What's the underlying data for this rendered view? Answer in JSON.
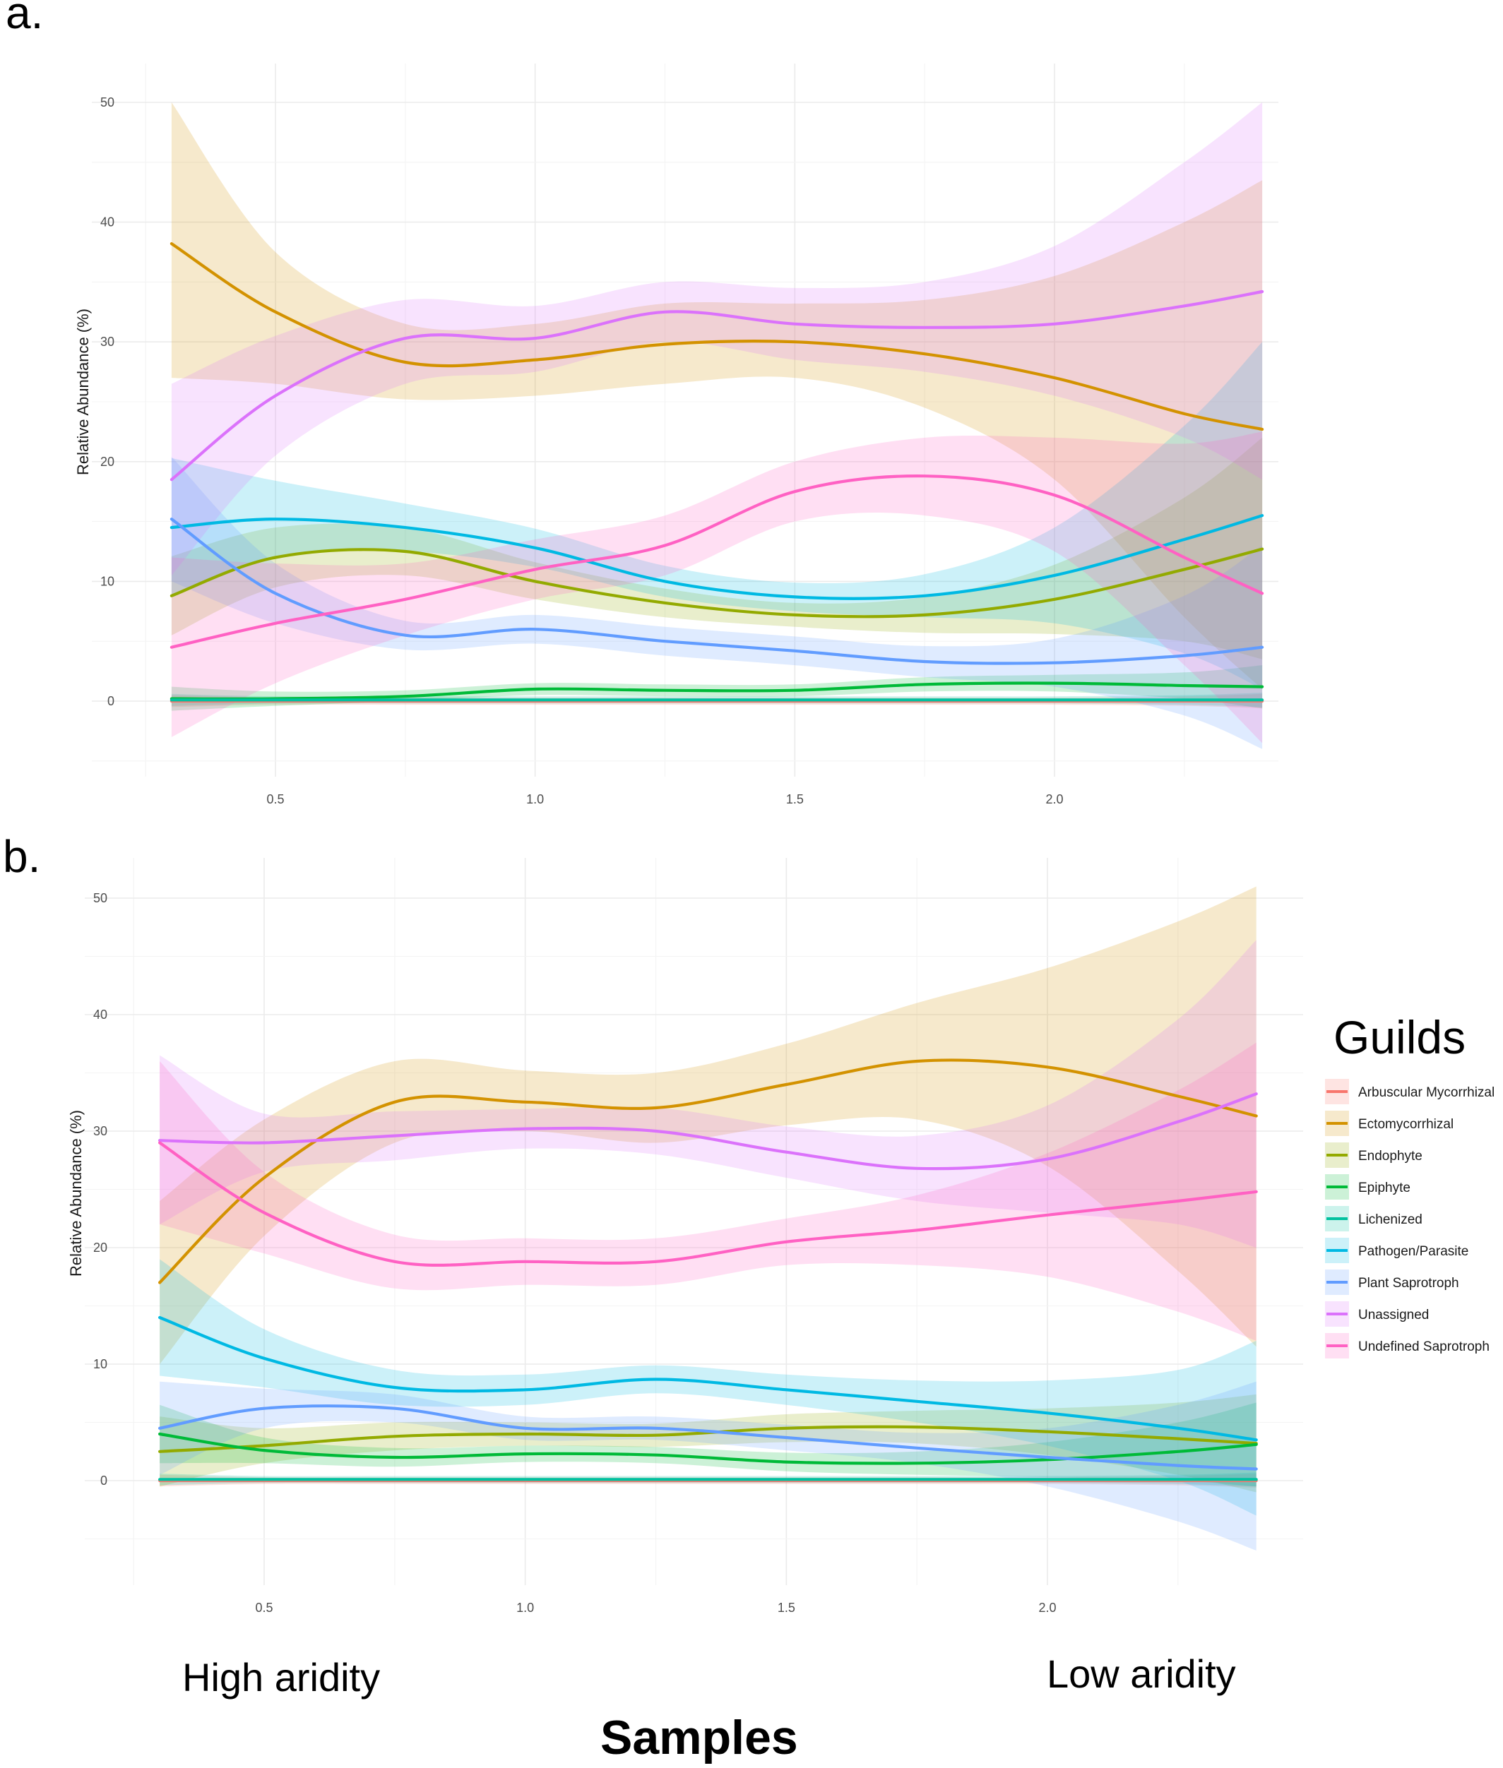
{
  "annotations": {
    "high_aridity": "High aridity",
    "low_aridity": "Low aridity",
    "samples": "Samples"
  },
  "legend": {
    "title": "Guilds",
    "items": [
      {
        "label": "Arbuscular Mycorrhizal",
        "color": "#F8766D"
      },
      {
        "label": "Ectomycorrhizal",
        "color": "#D39200"
      },
      {
        "label": "Endophyte",
        "color": "#93AA00"
      },
      {
        "label": "Epiphyte",
        "color": "#00BA38"
      },
      {
        "label": "Lichenized",
        "color": "#00C19F"
      },
      {
        "label": "Pathogen/Parasite",
        "color": "#00B9E3"
      },
      {
        "label": "Plant Saprotroph",
        "color": "#619CFF"
      },
      {
        "label": "Unassigned",
        "color": "#DB72FB"
      },
      {
        "label": "Undefined Saprotroph",
        "color": "#FF61C3"
      }
    ]
  },
  "chart_data": [
    {
      "type": "line",
      "panel": "a.",
      "ylabel": "Relative Abundance (%)",
      "xlim": [
        0.2,
        2.45
      ],
      "ylim": [
        -5,
        52
      ],
      "x_ticks": [
        "0.5",
        "1.0",
        "1.5",
        "2.0"
      ],
      "y_ticks": [
        "0",
        "10",
        "20",
        "30",
        "40",
        "50"
      ],
      "grid": true,
      "x": [
        0.3,
        0.5,
        0.75,
        1.0,
        1.25,
        1.5,
        1.75,
        2.0,
        2.25,
        2.4
      ],
      "series": [
        {
          "name": "Arbuscular Mycorrhizal",
          "values": [
            0,
            0,
            0,
            0,
            0,
            0,
            0,
            0,
            0,
            0
          ],
          "lower": [
            -0.5,
            -0.3,
            -0.3,
            -0.3,
            -0.3,
            -0.3,
            -0.3,
            -0.3,
            -0.4,
            -0.6
          ],
          "upper": [
            0.5,
            0.3,
            0.3,
            0.3,
            0.3,
            0.3,
            0.3,
            0.3,
            0.4,
            0.6
          ]
        },
        {
          "name": "Ectomycorrhizal",
          "values": [
            38.2,
            32.5,
            28.3,
            28.5,
            29.8,
            30,
            29,
            27,
            24,
            22.7
          ],
          "lower": [
            27,
            26.5,
            25.2,
            25.5,
            26.5,
            27,
            24.5,
            18.5,
            7,
            1
          ],
          "upper": [
            50,
            37.5,
            31.5,
            31.5,
            33.2,
            33.2,
            33.5,
            35.5,
            40,
            43.5
          ]
        },
        {
          "name": "Endophyte",
          "values": [
            8.8,
            12,
            12.5,
            10,
            8.2,
            7.2,
            7.2,
            8.5,
            11,
            12.7
          ],
          "lower": [
            5.5,
            9.5,
            10.5,
            8.5,
            7,
            6.2,
            5.7,
            5.6,
            5,
            3.5
          ],
          "upper": [
            12.1,
            14.5,
            14.5,
            11.6,
            9.4,
            8.2,
            8.7,
            11.4,
            17,
            22
          ]
        },
        {
          "name": "Epiphyte",
          "values": [
            0.2,
            0.2,
            0.4,
            1,
            0.9,
            0.9,
            1.4,
            1.5,
            1.3,
            1.2
          ],
          "lower": [
            -0.8,
            -0.4,
            0,
            0.5,
            0.4,
            0.4,
            0.8,
            0.8,
            0.2,
            -0.6
          ],
          "upper": [
            1.2,
            0.8,
            0.9,
            1.5,
            1.4,
            1.4,
            2,
            2.2,
            2.4,
            3
          ]
        },
        {
          "name": "Lichenized",
          "values": [
            0.1,
            0.1,
            0.1,
            0.1,
            0.1,
            0.1,
            0.1,
            0.1,
            0.1,
            0.1
          ],
          "lower": [
            -0.4,
            -0.2,
            -0.2,
            -0.2,
            -0.2,
            -0.2,
            -0.2,
            -0.2,
            -0.3,
            -0.5
          ],
          "upper": [
            0.6,
            0.4,
            0.4,
            0.4,
            0.4,
            0.4,
            0.4,
            0.4,
            0.5,
            0.7
          ]
        },
        {
          "name": "Pathogen/Parasite",
          "values": [
            14.5,
            15.2,
            14.5,
            12.8,
            10,
            8.7,
            8.8,
            10.5,
            13.5,
            15.5
          ],
          "lower": [
            8.7,
            12,
            12.5,
            11.2,
            8.7,
            7.5,
            7,
            6.5,
            4,
            1
          ],
          "upper": [
            20.3,
            18.4,
            16.5,
            14.4,
            11.3,
            9.9,
            10.6,
            14.5,
            23,
            30
          ]
        },
        {
          "name": "Plant Saprotroph",
          "values": [
            15.2,
            9,
            5.5,
            6,
            5,
            4.2,
            3.3,
            3.2,
            3.8,
            4.5
          ],
          "lower": [
            10,
            6.5,
            4.3,
            4.8,
            3.8,
            3,
            2,
            1.2,
            -1.2,
            -4
          ],
          "upper": [
            20.4,
            11.5,
            6.7,
            7.2,
            6.2,
            5.4,
            4.6,
            5.2,
            8.8,
            13
          ]
        },
        {
          "name": "Unassigned",
          "values": [
            18.5,
            25.5,
            30.3,
            30.3,
            32.5,
            31.5,
            31.2,
            31.5,
            33,
            34.2
          ],
          "lower": [
            10.5,
            20.5,
            26.5,
            27.5,
            30,
            28.5,
            27.5,
            25.5,
            22,
            18.5
          ],
          "upper": [
            26.5,
            30.5,
            33.5,
            33,
            35,
            34.5,
            35,
            38,
            45,
            50
          ]
        },
        {
          "name": "Undefined Saprotroph",
          "values": [
            4.5,
            6.5,
            8.5,
            11,
            13,
            17.5,
            18.8,
            17.2,
            12,
            9
          ],
          "lower": [
            -3,
            1.5,
            5.5,
            8.5,
            10.5,
            15,
            15.5,
            12.5,
            3,
            -3.5
          ],
          "upper": [
            12,
            11.5,
            11.5,
            13.5,
            15.5,
            20,
            22,
            22,
            21.5,
            22.5
          ]
        }
      ]
    },
    {
      "type": "line",
      "panel": "b.",
      "ylabel": "Relative Abundance (%)",
      "xlim": [
        0.2,
        2.45
      ],
      "ylim": [
        -9,
        54
      ],
      "x_ticks": [
        "0.5",
        "1.0",
        "1.5",
        "2.0"
      ],
      "y_ticks": [
        "0",
        "10",
        "20",
        "30",
        "40",
        "50"
      ],
      "grid": true,
      "x": [
        0.3,
        0.5,
        0.75,
        1.0,
        1.25,
        1.5,
        1.75,
        2.0,
        2.25,
        2.4
      ],
      "series": [
        {
          "name": "Arbuscular Mycorrhizal",
          "values": [
            0,
            0,
            0,
            0,
            0,
            0,
            0,
            0,
            0,
            0
          ],
          "lower": [
            -0.5,
            -0.3,
            -0.3,
            -0.3,
            -0.3,
            -0.3,
            -0.3,
            -0.3,
            -0.4,
            -0.6
          ],
          "upper": [
            0.5,
            0.3,
            0.3,
            0.3,
            0.3,
            0.3,
            0.3,
            0.3,
            0.4,
            0.6
          ]
        },
        {
          "name": "Ectomycorrhizal",
          "values": [
            17,
            26,
            32.5,
            32.5,
            32,
            34,
            36,
            35.5,
            33,
            31.3
          ],
          "lower": [
            10,
            21,
            29,
            30,
            29,
            30.5,
            31,
            27,
            18,
            11.5
          ],
          "upper": [
            24,
            31,
            36,
            35.2,
            35,
            37.5,
            41,
            44,
            48,
            51
          ]
        },
        {
          "name": "Endophyte",
          "values": [
            2.5,
            3,
            3.8,
            4,
            3.9,
            4.5,
            4.6,
            4.2,
            3.6,
            3.2
          ],
          "lower": [
            -0.5,
            1.5,
            2.6,
            3,
            2.9,
            3.3,
            3.2,
            2.2,
            0.5,
            -1
          ],
          "upper": [
            5.5,
            4.5,
            5,
            5,
            4.9,
            5.7,
            6,
            6.2,
            6.7,
            7.4
          ]
        },
        {
          "name": "Epiphyte",
          "values": [
            4,
            2.6,
            2,
            2.3,
            2.2,
            1.6,
            1.5,
            1.8,
            2.5,
            3.1
          ],
          "lower": [
            1.5,
            1.5,
            1.2,
            1.6,
            1.5,
            0.8,
            0.5,
            0.3,
            0,
            -0.5
          ],
          "upper": [
            6.5,
            3.7,
            2.8,
            3,
            2.9,
            2.4,
            2.5,
            3.3,
            5,
            6.7
          ]
        },
        {
          "name": "Lichenized",
          "values": [
            0.1,
            0.1,
            0.1,
            0.1,
            0.1,
            0.1,
            0.1,
            0.1,
            0.1,
            0.1
          ],
          "lower": [
            -0.4,
            -0.2,
            -0.2,
            -0.2,
            -0.2,
            -0.2,
            -0.2,
            -0.2,
            -0.3,
            -0.5
          ],
          "upper": [
            0.6,
            0.4,
            0.4,
            0.4,
            0.4,
            0.4,
            0.4,
            0.4,
            0.5,
            0.7
          ]
        },
        {
          "name": "Pathogen/Parasite",
          "values": [
            14,
            10.5,
            8,
            7.8,
            8.7,
            7.8,
            6.8,
            5.8,
            4.5,
            3.5
          ],
          "lower": [
            9,
            8,
            6.5,
            6.5,
            7.5,
            6.5,
            5,
            3,
            0,
            -3
          ],
          "upper": [
            19,
            13,
            9.5,
            9.1,
            9.9,
            9.1,
            8.6,
            8.6,
            9.5,
            12
          ]
        },
        {
          "name": "Plant Saprotroph",
          "values": [
            4.5,
            6.2,
            6.2,
            4.5,
            4.5,
            3.7,
            2.8,
            2,
            1.3,
            1
          ],
          "lower": [
            0.5,
            4.5,
            5,
            3.5,
            3.5,
            2.6,
            1.5,
            -0.5,
            -3.5,
            -6
          ],
          "upper": [
            8.5,
            7.9,
            7.4,
            5.5,
            5.5,
            4.8,
            4.1,
            4.5,
            6.5,
            8.5
          ]
        },
        {
          "name": "Unassigned",
          "values": [
            29.2,
            29,
            29.6,
            30.2,
            30,
            28.2,
            26.8,
            27.6,
            30.8,
            33.2
          ],
          "lower": [
            22,
            26.5,
            27.5,
            28.5,
            28,
            26,
            24,
            23,
            22,
            20
          ],
          "upper": [
            36.5,
            31.5,
            31.7,
            31.9,
            32,
            30.4,
            29.6,
            32.2,
            39.6,
            46.4
          ]
        },
        {
          "name": "Undefined Saprotroph",
          "values": [
            29,
            23,
            18.8,
            18.8,
            18.8,
            20.5,
            21.5,
            22.8,
            24,
            24.8
          ],
          "lower": [
            22,
            19.5,
            16.5,
            16.8,
            16.8,
            18.5,
            18.5,
            17.5,
            14.5,
            12
          ],
          "upper": [
            36,
            26.5,
            21.1,
            20.8,
            20.8,
            22.5,
            24.5,
            28.1,
            33.5,
            37.6
          ]
        }
      ]
    }
  ]
}
